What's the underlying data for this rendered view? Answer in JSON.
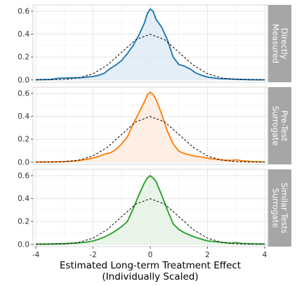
{
  "chart_data": {
    "type": "area",
    "layout": "faceted-rows",
    "xlabel": "Estimated Long-term Treatment Effect",
    "xlabel_sub": "(Individually Scaled)",
    "ylabel": "",
    "xlim": [
      -4.1,
      4.1
    ],
    "ylim": [
      -0.02,
      0.655
    ],
    "x_ticks": [
      -4,
      -2,
      0,
      2,
      4
    ],
    "x_tick_labels": [
      "-4",
      "-2",
      "0",
      "2",
      "4"
    ],
    "y_ticks": [
      0.0,
      0.2,
      0.4,
      0.6
    ],
    "y_tick_labels": [
      "0.0",
      "0.2",
      "0.4",
      "0.6"
    ],
    "grid": true,
    "reference": {
      "style": "dashed",
      "color": "#000000",
      "x": [
        -4,
        -3.5,
        -3,
        -2.5,
        -2,
        -1.5,
        -1,
        -0.5,
        0,
        0.5,
        1,
        1.5,
        2,
        2.5,
        3,
        3.5,
        4
      ],
      "y": [
        0.0001,
        0.0009,
        0.0044,
        0.0175,
        0.054,
        0.1295,
        0.242,
        0.352,
        0.399,
        0.352,
        0.242,
        0.1295,
        0.054,
        0.0175,
        0.0044,
        0.0009,
        0.0001
      ]
    },
    "panels": [
      {
        "strip_lines": [
          "Directly",
          "Measured"
        ],
        "color": "#1f77b4",
        "fill": "#dbe8f4",
        "x": [
          -4,
          -3.5,
          -3.2,
          -2.8,
          -2.4,
          -2,
          -1.8,
          -1.6,
          -1.4,
          -1.2,
          -1,
          -0.8,
          -0.6,
          -0.4,
          -0.2,
          -0.1,
          0,
          0.1,
          0.2,
          0.4,
          0.6,
          0.8,
          1,
          1.2,
          1.4,
          1.6,
          1.8,
          2,
          2.4,
          2.8,
          3.2,
          3.6,
          4
        ],
        "y": [
          0.002,
          0.004,
          0.015,
          0.018,
          0.02,
          0.03,
          0.04,
          0.06,
          0.1,
          0.13,
          0.17,
          0.23,
          0.3,
          0.39,
          0.5,
          0.58,
          0.62,
          0.6,
          0.53,
          0.46,
          0.35,
          0.2,
          0.135,
          0.12,
          0.095,
          0.06,
          0.04,
          0.025,
          0.012,
          0.008,
          0.004,
          0.002,
          0.001
        ]
      },
      {
        "strip_lines": [
          "Pre-Test",
          "Surrogate"
        ],
        "color": "#ff7f0e",
        "fill": "#fde9dc",
        "x": [
          -4,
          -3.5,
          -3,
          -2.6,
          -2.2,
          -2,
          -1.8,
          -1.6,
          -1.4,
          -1.2,
          -1,
          -0.8,
          -0.6,
          -0.4,
          -0.2,
          -0.1,
          0,
          0.1,
          0.2,
          0.4,
          0.6,
          0.8,
          1,
          1.2,
          1.4,
          1.6,
          1.8,
          2,
          2.4,
          2.8,
          3,
          3.2,
          3.6,
          4
        ],
        "y": [
          0.001,
          0.002,
          0.005,
          0.01,
          0.025,
          0.035,
          0.05,
          0.07,
          0.08,
          0.11,
          0.16,
          0.22,
          0.33,
          0.43,
          0.53,
          0.59,
          0.61,
          0.59,
          0.55,
          0.42,
          0.27,
          0.16,
          0.095,
          0.075,
          0.062,
          0.05,
          0.045,
          0.035,
          0.022,
          0.015,
          0.02,
          0.012,
          0.005,
          0.002
        ]
      },
      {
        "strip_lines": [
          "Similar Tests",
          "Surrogate"
        ],
        "color": "#2ca02c",
        "fill": "#e2f1e0",
        "x": [
          -4,
          -3.5,
          -3,
          -2.6,
          -2.2,
          -2,
          -1.8,
          -1.6,
          -1.4,
          -1.2,
          -1,
          -0.8,
          -0.6,
          -0.4,
          -0.2,
          -0.1,
          0,
          0.1,
          0.2,
          0.4,
          0.6,
          0.8,
          1,
          1.2,
          1.4,
          1.6,
          1.8,
          2,
          2.4,
          2.8,
          3,
          3.2,
          3.6,
          4
        ],
        "y": [
          0.002,
          0.003,
          0.006,
          0.01,
          0.02,
          0.03,
          0.045,
          0.065,
          0.09,
          0.12,
          0.155,
          0.2,
          0.31,
          0.43,
          0.54,
          0.58,
          0.6,
          0.58,
          0.55,
          0.43,
          0.3,
          0.18,
          0.13,
          0.1,
          0.08,
          0.06,
          0.045,
          0.03,
          0.02,
          0.01,
          0.015,
          0.008,
          0.004,
          0.003
        ]
      }
    ]
  }
}
